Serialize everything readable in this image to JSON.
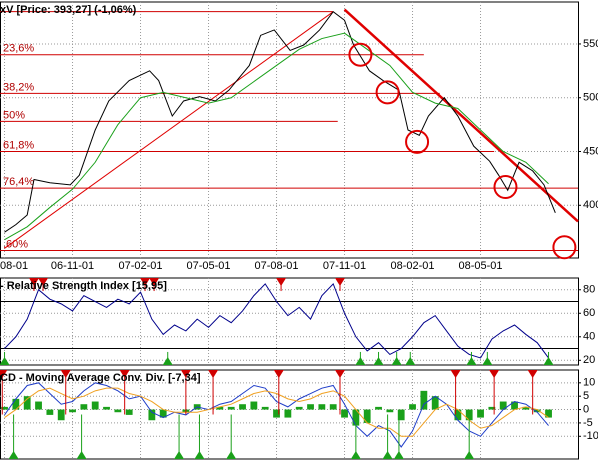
{
  "chart_data": [
    {
      "type": "line",
      "title": "xV [Price: 393,27] (-1,06%)",
      "xlim": [
        -0.2,
        25.3
      ],
      "ylim": [
        351,
        589
      ],
      "xticks": [
        {
          "value": 0,
          "label": "08-01"
        },
        {
          "value": 3,
          "label": "06-11-01"
        },
        {
          "value": 6,
          "label": "07-02-01"
        },
        {
          "value": 9,
          "label": "07-05-01"
        },
        {
          "value": 12,
          "label": "07-08-01"
        },
        {
          "value": 15,
          "label": "07-11-01"
        },
        {
          "value": 18,
          "label": "08-02-01"
        },
        {
          "value": 21,
          "label": "08-05-01"
        }
      ],
      "yticks": [
        400,
        450,
        500,
        550
      ],
      "grid": true,
      "series": [
        {
          "color": "#000000",
          "x": [
            0,
            0.5,
            1,
            1.3,
            2,
            2.9,
            3.3,
            4,
            4.6,
            5.5,
            6.4,
            6.8,
            7.4,
            7.9,
            8.6,
            9.3,
            9.9,
            10.8,
            11.3,
            11.9,
            12.6,
            13.2,
            13.9,
            14.5,
            15,
            15.4,
            16.1,
            16.7,
            17.4,
            17.8,
            18.3,
            18.7,
            19.4,
            20,
            20.7,
            21.4,
            21.8,
            22.2,
            22.7,
            23.3,
            23.8,
            24.3
          ],
          "values": [
            375,
            382,
            391,
            424,
            421,
            419,
            428,
            470,
            497,
            516,
            525,
            516,
            483,
            497,
            501,
            497,
            507,
            530,
            558,
            563,
            544,
            549,
            563,
            580,
            572,
            549,
            525,
            516,
            507,
            470,
            465,
            483,
            500,
            483,
            455,
            441,
            428,
            414,
            440,
            432,
            419,
            393
          ]
        },
        {
          "color": "#1aa01a",
          "x": [
            0,
            1,
            2,
            3,
            4,
            5,
            6,
            7,
            8,
            9,
            10,
            11,
            12,
            13,
            14,
            15,
            16,
            17,
            18,
            19,
            20,
            21,
            22,
            23,
            24
          ],
          "values": [
            368,
            380,
            398,
            415,
            440,
            475,
            500,
            505,
            500,
            495,
            500,
            515,
            530,
            545,
            555,
            560,
            545,
            530,
            505,
            495,
            490,
            470,
            450,
            440,
            420
          ]
        }
      ],
      "levels": [
        {
          "value": 580,
          "x_end": 14.5
        },
        {
          "label": "23,6%",
          "value": 540,
          "x_end": 18.5
        },
        {
          "label": "38,2%",
          "value": 504,
          "x_end": 19.2
        },
        {
          "label": "50%",
          "value": 478,
          "x_end": 14.7
        },
        {
          "label": "61,8%",
          "value": 450,
          "x_end": 21.6
        },
        {
          "label": "76,4%",
          "value": 416,
          "x_end": 25.3
        },
        {
          "label": ".60%",
          "value": 358,
          "x_end": 25.3
        }
      ],
      "trend_lines": [
        {
          "x": [
            15,
            25.3
          ],
          "y": [
            582,
            385
          ],
          "color": "#e00000"
        },
        {
          "x": [
            0,
            14.5
          ],
          "y": [
            360,
            580
          ],
          "color": "#e00000"
        }
      ],
      "circles": [
        {
          "x": 15.7,
          "y": 540
        },
        {
          "x": 16.9,
          "y": 505
        },
        {
          "x": 18.2,
          "y": 459
        },
        {
          "x": 22.1,
          "y": 417
        },
        {
          "x": 24.7,
          "y": 361
        }
      ]
    },
    {
      "type": "line",
      "title": "- Relative Strength Index [15,95]",
      "xlim": [
        -0.2,
        25.3
      ],
      "ylim": [
        16,
        90
      ],
      "xticks": [
        0,
        3,
        6,
        9,
        12,
        15,
        18,
        21
      ],
      "yticks": [
        20,
        40,
        60,
        80
      ],
      "grid": true,
      "hlines": [
        70,
        30
      ],
      "x": [
        0,
        0.5,
        1,
        1.5,
        2,
        2.5,
        3,
        3.5,
        4,
        4.5,
        5,
        5.5,
        6,
        6.5,
        7,
        7.5,
        8,
        8.5,
        9,
        9.5,
        10,
        10.5,
        11,
        11.5,
        12,
        12.5,
        13,
        13.5,
        14,
        14.5,
        15,
        15.5,
        16,
        16.5,
        17,
        17.5,
        18,
        18.5,
        19,
        19.5,
        20,
        20.5,
        21,
        21.5,
        22,
        22.5,
        23,
        23.5,
        24
      ],
      "series": [
        {
          "color": "#00008b",
          "values": [
            30,
            40,
            55,
            80,
            72,
            68,
            62,
            75,
            70,
            65,
            72,
            68,
            78,
            55,
            42,
            50,
            45,
            55,
            48,
            58,
            52,
            62,
            75,
            85,
            70,
            58,
            65,
            55,
            75,
            85,
            60,
            40,
            28,
            35,
            25,
            30,
            40,
            52,
            58,
            45,
            32,
            25,
            22,
            38,
            45,
            50,
            42,
            35,
            22
          ]
        }
      ],
      "sell_signals": [
        1.3,
        1.7,
        6.2,
        6.6,
        12.2,
        14.8
      ],
      "buy_signals": [
        0,
        7.2,
        15.7,
        16.5,
        17.3,
        17.9,
        20.6,
        21.3,
        24.0
      ]
    },
    {
      "type": "line",
      "title": "CD - Moving Average Conv. Div. [-7,34]",
      "xlim": [
        -0.2,
        25.3
      ],
      "ylim": [
        -18.5,
        14.8
      ],
      "xticks": [
        0,
        3,
        6,
        9,
        12,
        15,
        18,
        21
      ],
      "yticks": [
        -10,
        -5,
        0,
        5,
        10
      ],
      "grid": true,
      "x": [
        0,
        0.5,
        1,
        1.5,
        2,
        2.5,
        3,
        3.5,
        4,
        4.5,
        5,
        5.5,
        6,
        6.5,
        7,
        7.5,
        8,
        8.5,
        9,
        9.5,
        10,
        10.5,
        11,
        11.5,
        12,
        12.5,
        13,
        13.5,
        14,
        14.5,
        15,
        15.5,
        16,
        16.5,
        17,
        17.5,
        18,
        18.5,
        19,
        19.5,
        20,
        20.5,
        21,
        21.5,
        22,
        22.5,
        23,
        23.5,
        24
      ],
      "series": [
        {
          "color": "#1e3cc8",
          "values": [
            -2,
            4,
            9,
            10,
            6,
            2,
            3,
            7,
            10,
            9,
            7,
            4,
            5,
            -1,
            -3,
            -1,
            -2,
            1,
            0,
            2,
            3,
            6,
            9,
            8,
            3,
            1,
            4,
            6,
            8,
            9,
            2,
            -6,
            -10,
            -6,
            -8,
            -14,
            -8,
            2,
            5,
            2,
            -4,
            -8,
            -10,
            -5,
            0,
            3,
            2,
            -1,
            -6
          ]
        },
        {
          "color": "#f0a020",
          "values": [
            -3,
            0,
            4,
            7,
            8,
            6,
            4,
            5,
            7,
            8,
            8,
            6,
            5,
            3,
            0,
            -1,
            -1,
            -1,
            0,
            1,
            2,
            4,
            6,
            7,
            6,
            4,
            3,
            4,
            6,
            7,
            5,
            0,
            -5,
            -7,
            -7,
            -10,
            -10,
            -5,
            0,
            2,
            0,
            -4,
            -7,
            -6,
            -3,
            0,
            1,
            0,
            -3
          ]
        }
      ],
      "histogram": {
        "color": "#1aa01a",
        "values": [
          1,
          4,
          5,
          3,
          -2,
          -4,
          -1,
          2,
          3,
          1,
          -1,
          -2,
          0,
          -4,
          -3,
          0,
          -1,
          2,
          0,
          1,
          1,
          2,
          3,
          1,
          -3,
          -3,
          1,
          2,
          2,
          2,
          -3,
          -6,
          -5,
          1,
          -1,
          -4,
          2,
          7,
          5,
          0,
          -4,
          -4,
          -3,
          1,
          3,
          3,
          1,
          -1,
          -3
        ]
      },
      "sell_signals": [
        -0.1,
        2.7,
        5.3,
        8.0,
        9.2,
        12.1,
        14.8,
        19.9,
        21.6,
        23.3
      ],
      "buy_signals": [
        0.4,
        3.4,
        7.7,
        8.6,
        10.0,
        15.5,
        16.9,
        17.4,
        20.5
      ]
    }
  ]
}
